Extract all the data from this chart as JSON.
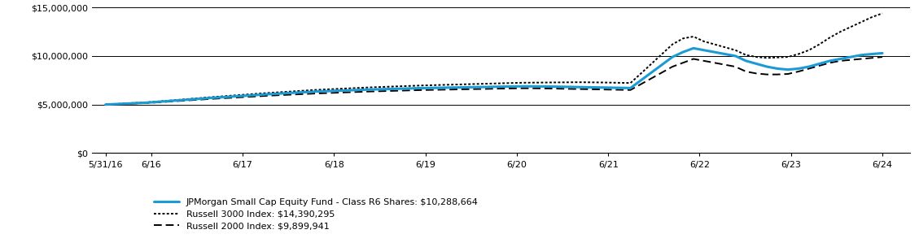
{
  "x_labels": [
    "5/31/16",
    "6/16",
    "6/17",
    "6/18",
    "6/19",
    "6/20",
    "6/21",
    "6/22",
    "6/23",
    "6/24"
  ],
  "x_tick_positions": [
    0,
    0.5,
    1.5,
    2.5,
    3.5,
    4.5,
    5.5,
    6.5,
    7.5,
    8.5
  ],
  "fund_values": [
    5000000,
    5050000,
    5100000,
    5150000,
    5200000,
    5280000,
    5360000,
    5440000,
    5520000,
    5600000,
    5680000,
    5750000,
    5820000,
    5890000,
    5960000,
    6030000,
    6100000,
    6160000,
    6220000,
    6280000,
    6340000,
    6380000,
    6420000,
    6460000,
    6500000,
    6540000,
    6570000,
    6600000,
    6630000,
    6660000,
    6690000,
    6710000,
    6730000,
    6750000,
    6770000,
    6790000,
    6810000,
    6830000,
    6850000,
    6870000,
    6880000,
    6870000,
    6860000,
    6840000,
    6820000,
    6800000,
    6780000,
    6760000,
    6740000,
    6720000,
    6700000,
    7500000,
    8300000,
    9100000,
    9900000,
    10400000,
    10800000,
    10600000,
    10400000,
    10200000,
    10000000,
    9500000,
    9200000,
    8900000,
    8700000,
    8600000,
    8700000,
    8900000,
    9200000,
    9500000,
    9700000,
    9900000,
    10100000,
    10200000,
    10288664
  ],
  "russell3000_values": [
    5000000,
    5060000,
    5120000,
    5180000,
    5240000,
    5320000,
    5400000,
    5490000,
    5580000,
    5670000,
    5760000,
    5840000,
    5920000,
    6000000,
    6080000,
    6160000,
    6230000,
    6300000,
    6370000,
    6440000,
    6510000,
    6560000,
    6610000,
    6660000,
    6710000,
    6760000,
    6800000,
    6840000,
    6880000,
    6920000,
    6960000,
    6990000,
    7020000,
    7050000,
    7080000,
    7110000,
    7140000,
    7170000,
    7200000,
    7230000,
    7250000,
    7260000,
    7270000,
    7280000,
    7290000,
    7300000,
    7290000,
    7280000,
    7260000,
    7240000,
    7220000,
    8200000,
    9200000,
    10200000,
    11200000,
    11800000,
    12000000,
    11500000,
    11200000,
    10900000,
    10600000,
    10100000,
    9900000,
    9800000,
    9850000,
    9900000,
    10200000,
    10600000,
    11200000,
    11900000,
    12500000,
    13000000,
    13500000,
    14000000,
    14390295
  ],
  "russell2000_values": [
    5000000,
    5040000,
    5080000,
    5120000,
    5160000,
    5230000,
    5300000,
    5370000,
    5440000,
    5510000,
    5580000,
    5640000,
    5700000,
    5760000,
    5820000,
    5880000,
    5940000,
    5990000,
    6040000,
    6090000,
    6140000,
    6180000,
    6220000,
    6260000,
    6300000,
    6340000,
    6370000,
    6400000,
    6430000,
    6460000,
    6490000,
    6510000,
    6530000,
    6550000,
    6570000,
    6590000,
    6610000,
    6630000,
    6650000,
    6670000,
    6680000,
    6670000,
    6660000,
    6640000,
    6620000,
    6600000,
    6580000,
    6560000,
    6540000,
    6520000,
    6500000,
    7100000,
    7700000,
    8300000,
    8900000,
    9300000,
    9700000,
    9500000,
    9300000,
    9100000,
    8900000,
    8400000,
    8200000,
    8100000,
    8100000,
    8150000,
    8400000,
    8700000,
    9000000,
    9300000,
    9500000,
    9600000,
    9700000,
    9800000,
    9899941
  ],
  "fund_color": "#1b9ad4",
  "russell3000_color": "#000000",
  "russell2000_color": "#000000",
  "fund_label": "JPMorgan Small Cap Equity Fund - Class R6 Shares: $10,288,664",
  "russell3000_label": "Russell 3000 Index: $14,390,295",
  "russell2000_label": "Russell 2000 Index: $9,899,941",
  "ylim": [
    0,
    15000000
  ],
  "yticks": [
    0,
    5000000,
    10000000,
    15000000
  ],
  "ytick_labels": [
    "$0",
    "$5,000,000",
    "$10,000,000",
    "$15,000,000"
  ],
  "background_color": "#ffffff",
  "grid_color": "#000000",
  "n_segments": 9,
  "n_points": 75
}
